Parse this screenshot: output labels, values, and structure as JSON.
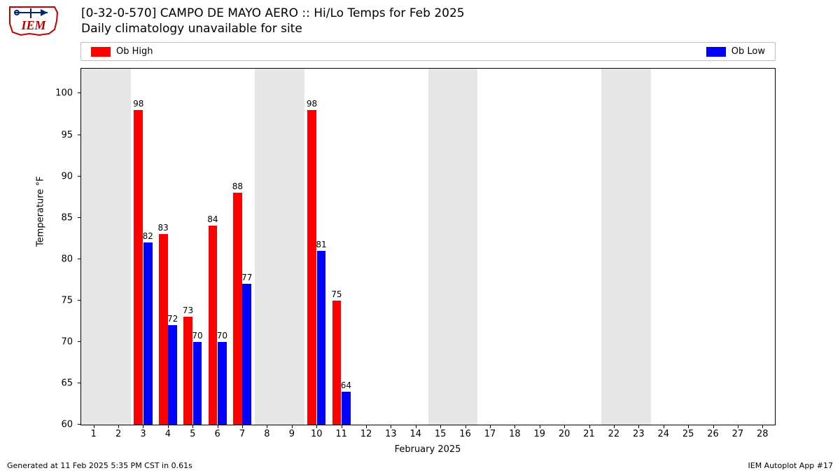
{
  "logo_text": "IEM",
  "title": {
    "line1": "[0-32-0-570] CAMPO DE MAYO AERO :: Hi/Lo Temps for Feb 2025",
    "line2": "Daily climatology unavailable for site"
  },
  "legend": {
    "entries": [
      {
        "label": "Ob High",
        "color": "#ff0000"
      },
      {
        "label": "Ob Low",
        "color": "#0000ff"
      }
    ],
    "border_color": "#bfbfbf"
  },
  "chart": {
    "type": "bar",
    "background_color": "#ffffff",
    "weekend_band_color": "#e6e6e6",
    "border_color": "#000000",
    "xlabel": "February 2025",
    "ylabel": "Temperature °F",
    "label_fontsize": 13,
    "tick_fontsize": 13,
    "value_label_fontsize": 12,
    "xlim": [
      0.5,
      28.5
    ],
    "ylim": [
      60,
      103
    ],
    "ytick_step": 5,
    "yticks": [
      60,
      65,
      70,
      75,
      80,
      85,
      90,
      95,
      100
    ],
    "xticks": [
      1,
      2,
      3,
      4,
      5,
      6,
      7,
      8,
      9,
      10,
      11,
      12,
      13,
      14,
      15,
      16,
      17,
      18,
      19,
      20,
      21,
      22,
      23,
      24,
      25,
      26,
      27,
      28
    ],
    "weekend_days": [
      [
        1,
        2
      ],
      [
        8,
        9
      ],
      [
        15,
        16
      ],
      [
        22,
        23
      ]
    ],
    "bar_width": 0.36,
    "high_offset": -0.19,
    "low_offset": 0.19,
    "series": {
      "high": {
        "color": "#ff0000",
        "days": [
          3,
          4,
          5,
          6,
          7,
          10,
          11
        ],
        "values": [
          98,
          83,
          73,
          84,
          88,
          98,
          75
        ]
      },
      "low": {
        "color": "#0000ff",
        "days": [
          3,
          4,
          5,
          6,
          7,
          10,
          11
        ],
        "values": [
          82,
          72,
          70,
          70,
          77,
          81,
          64
        ]
      }
    }
  },
  "footer": {
    "left": "Generated at 11 Feb 2025 5:35 PM CST in 0.61s",
    "right": "IEM Autoplot App #17"
  }
}
